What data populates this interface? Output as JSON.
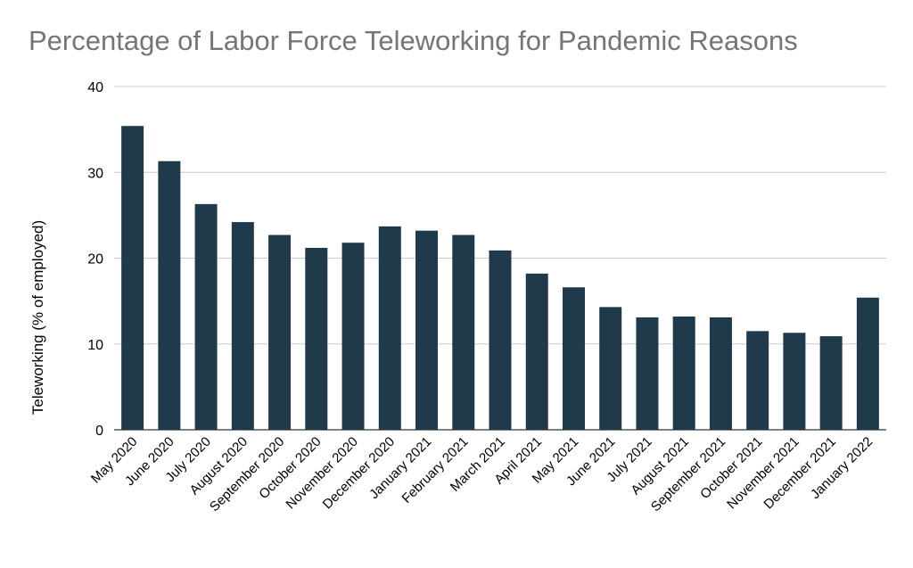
{
  "chart_data": {
    "type": "bar",
    "title": "Percentage of Labor Force Teleworking for Pandemic Reasons",
    "xlabel": "",
    "ylabel": "Teleworking (% of employed)",
    "ylim": [
      0,
      40
    ],
    "yticks": [
      "0",
      "10",
      "20",
      "30",
      "40"
    ],
    "grid": true,
    "legend": "none",
    "bar_color": "#1f3a4b",
    "categories": [
      "May 2020",
      "June 2020",
      "July 2020",
      "August 2020",
      "September 2020",
      "October 2020",
      "November 2020",
      "December 2020",
      "January 2021",
      "February 2021",
      "March 2021",
      "April 2021",
      "May 2021",
      "June 2021",
      "July 2021",
      "August 2021",
      "September 2021",
      "October 2021",
      "November 2021",
      "December 2021",
      "January 2022"
    ],
    "values": [
      35.4,
      31.3,
      26.3,
      24.2,
      22.7,
      21.2,
      21.8,
      23.7,
      23.2,
      22.7,
      20.9,
      18.2,
      16.6,
      14.3,
      13.1,
      13.2,
      13.1,
      11.5,
      11.3,
      10.9,
      15.4
    ]
  }
}
